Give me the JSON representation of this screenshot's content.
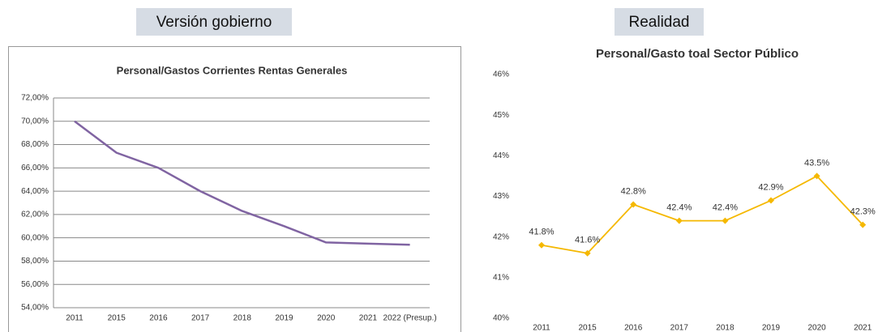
{
  "headers": [
    "Versión gobierno",
    "Realidad"
  ],
  "chart_data": [
    {
      "type": "line",
      "title": "Personal/Gastos Corrientes Rentas Generales",
      "categories": [
        "2011",
        "2015",
        "2016",
        "2017",
        "2018",
        "2019",
        "2020",
        "2021",
        "2022 (Presup.)"
      ],
      "values": [
        70.0,
        67.3,
        66.0,
        64.0,
        62.3,
        61.0,
        59.6,
        59.5,
        59.4
      ],
      "color": "#8064a2",
      "grid": true,
      "ylim": [
        54,
        72
      ],
      "yticks": [
        {
          "value": 54,
          "label": "54,00%"
        },
        {
          "value": 56,
          "label": "56,00%"
        },
        {
          "value": 58,
          "label": "58,00%"
        },
        {
          "value": 60,
          "label": "60,00%"
        },
        {
          "value": 62,
          "label": "62,00%"
        },
        {
          "value": 64,
          "label": "64,00%"
        },
        {
          "value": 66,
          "label": "66,00%"
        },
        {
          "value": 68,
          "label": "68,00%"
        },
        {
          "value": 70,
          "label": "70,00%"
        },
        {
          "value": 72,
          "label": "72,00%"
        }
      ]
    },
    {
      "type": "line",
      "title": "Personal/Gasto toal Sector Público",
      "categories": [
        "2011",
        "2015",
        "2016",
        "2017",
        "2018",
        "2019",
        "2020",
        "2021"
      ],
      "values": [
        41.8,
        41.6,
        42.8,
        42.4,
        42.4,
        42.9,
        43.5,
        42.3
      ],
      "value_labels": [
        "41.8%",
        "41.6%",
        "42.8%",
        "42.4%",
        "42.4%",
        "42.9%",
        "43.5%",
        "42.3%"
      ],
      "color": "#f5b800",
      "grid": false,
      "markers": true,
      "ylim": [
        40,
        46
      ],
      "yticks": [
        {
          "value": 40,
          "label": "40%"
        },
        {
          "value": 41,
          "label": "41%"
        },
        {
          "value": 42,
          "label": "42%"
        },
        {
          "value": 43,
          "label": "43%"
        },
        {
          "value": 44,
          "label": "44%"
        },
        {
          "value": 45,
          "label": "45%"
        },
        {
          "value": 46,
          "label": "46%"
        }
      ]
    }
  ]
}
